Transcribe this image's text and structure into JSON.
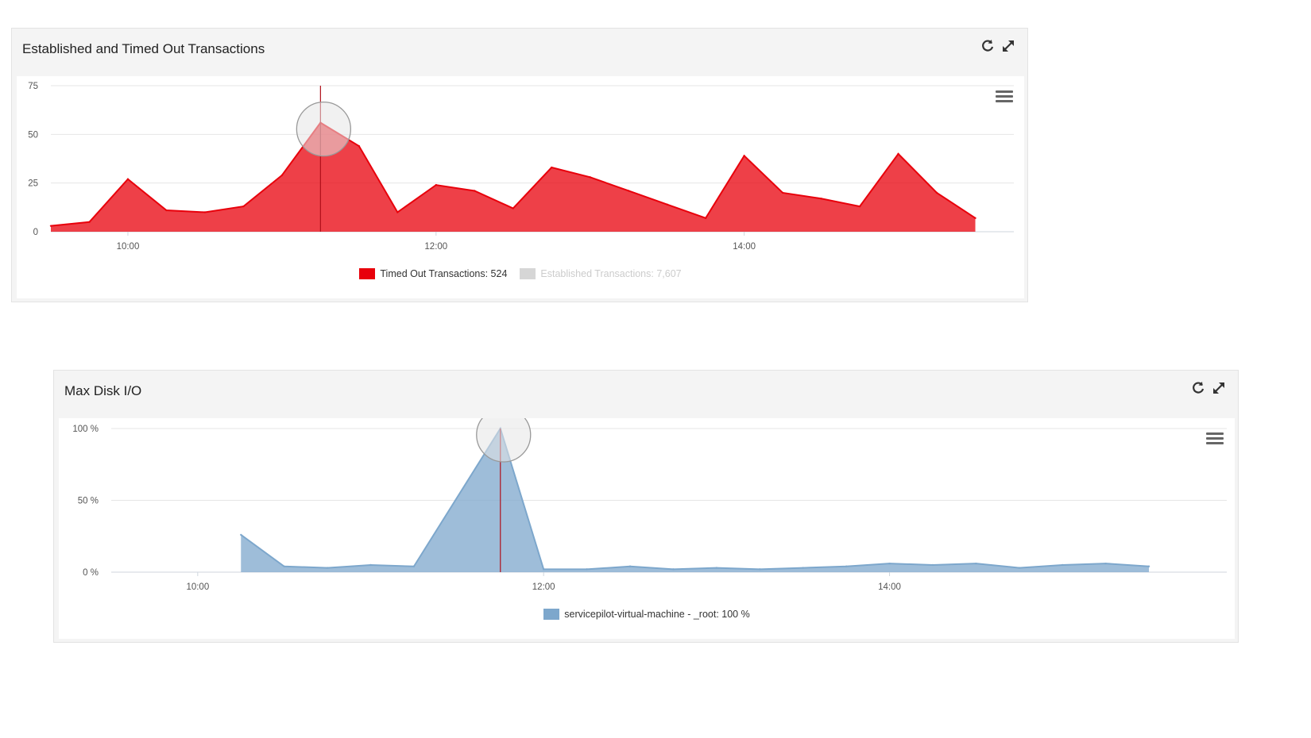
{
  "panels": [
    {
      "title": "Established and Timed Out Transactions",
      "icons": {
        "refresh": "refresh-icon",
        "expand": "expand-icon",
        "menu": "menu-icon"
      },
      "legend": [
        {
          "label": "Timed Out Transactions: 524",
          "color": "#e8000b",
          "active": true
        },
        {
          "label": "Established Transactions: 7,607",
          "color": "#d6d6d6",
          "active": false
        }
      ]
    },
    {
      "title": "Max Disk I/O",
      "icons": {
        "refresh": "refresh-icon",
        "expand": "expand-icon",
        "menu": "menu-icon"
      },
      "legend": [
        {
          "label": "servicepilot-virtual-machine - _root: 100 %",
          "color": "#7da7cc",
          "active": true
        }
      ]
    }
  ],
  "chart_data": [
    {
      "type": "area",
      "title": "Established and Timed Out Transactions",
      "xlabel": "",
      "ylabel": "",
      "x_ticks": [
        "10:00",
        "12:00",
        "14:00"
      ],
      "y_ticks": [
        "0",
        "25",
        "50",
        "75"
      ],
      "ylim": [
        0,
        75
      ],
      "xlim_hours": [
        9.5,
        15.75
      ],
      "grid": true,
      "legend_position": "bottom-center",
      "highlight_x": 11.25,
      "series": [
        {
          "name": "Timed Out Transactions",
          "color": "#e8000b",
          "x": [
            9.5,
            9.75,
            10.0,
            10.25,
            10.5,
            10.75,
            11.0,
            11.25,
            11.5,
            11.75,
            12.0,
            12.25,
            12.5,
            12.75,
            13.0,
            13.25,
            13.5,
            13.75,
            14.0,
            14.25,
            14.5,
            14.75,
            15.0,
            15.25,
            15.5
          ],
          "values": [
            3,
            5,
            27,
            11,
            10,
            13,
            29,
            56,
            44,
            10,
            24,
            21,
            12,
            33,
            28,
            21,
            14,
            7,
            39,
            20,
            17,
            13,
            40,
            20,
            7
          ]
        },
        {
          "name": "Established Transactions",
          "color": "#d6d6d6",
          "hidden": true,
          "x": [],
          "values": []
        }
      ]
    },
    {
      "type": "area",
      "title": "Max Disk I/O",
      "xlabel": "",
      "ylabel": "",
      "x_ticks": [
        "10:00",
        "12:00",
        "14:00"
      ],
      "y_ticks": [
        "0 %",
        "50 %",
        "100 %"
      ],
      "ylim": [
        0,
        100
      ],
      "xlim_hours": [
        9.5,
        15.95
      ],
      "grid": true,
      "legend_position": "bottom-center",
      "highlight_x": 11.75,
      "series": [
        {
          "name": "servicepilot-virtual-machine - _root",
          "color": "#7da7cc",
          "x": [
            10.25,
            10.5,
            10.75,
            11.0,
            11.25,
            11.75,
            12.0,
            12.25,
            12.5,
            12.75,
            13.0,
            13.25,
            13.5,
            13.75,
            14.0,
            14.25,
            14.5,
            14.75,
            15.0,
            15.25,
            15.5
          ],
          "values": [
            26,
            4,
            3,
            5,
            4,
            100,
            2,
            2,
            4,
            2,
            3,
            2,
            3,
            4,
            6,
            5,
            6,
            3,
            5,
            6,
            4
          ]
        }
      ]
    }
  ]
}
